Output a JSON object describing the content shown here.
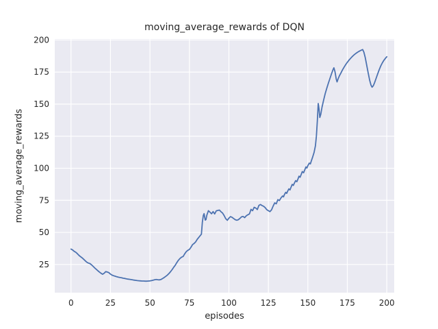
{
  "chart_data": {
    "type": "line",
    "title": "moving_average_rewards of DQN",
    "xlabel": "episodes",
    "ylabel": "moving_average_rewards",
    "x_ticks": [
      0,
      25,
      50,
      75,
      100,
      125,
      150,
      175,
      200
    ],
    "y_ticks": [
      25,
      50,
      75,
      100,
      125,
      150,
      175,
      200
    ],
    "xlim": [
      -10.3,
      204.7
    ],
    "ylim": [
      3.0,
      200.7
    ],
    "grid": true,
    "legend": "none",
    "colors": {
      "line": "#4C72B0",
      "plot_background": "#EAEAF2",
      "gridline": "#FFFFFF",
      "text": "#262626",
      "figure_background": "#FFFFFF"
    },
    "series": [
      {
        "name": "DQN moving average rewards",
        "points": [
          [
            0,
            37
          ],
          [
            1,
            36.3
          ],
          [
            2,
            35.2
          ],
          [
            3,
            34.5
          ],
          [
            4,
            33.4
          ],
          [
            5,
            32.1
          ],
          [
            6,
            31.1
          ],
          [
            7,
            30.2
          ],
          [
            8,
            29.1
          ],
          [
            9,
            27.9
          ],
          [
            10,
            26.8
          ],
          [
            11,
            26.1
          ],
          [
            12,
            25.7
          ],
          [
            13,
            24.7
          ],
          [
            14,
            23.5
          ],
          [
            15,
            22.3
          ],
          [
            16,
            21.2
          ],
          [
            17,
            20.1
          ],
          [
            18,
            19.1
          ],
          [
            19,
            18.1
          ],
          [
            20,
            17.4
          ],
          [
            21,
            18.2
          ],
          [
            22,
            19.4
          ],
          [
            23,
            19.1
          ],
          [
            24,
            18.6
          ],
          [
            25,
            17.5
          ],
          [
            26,
            16.7
          ],
          [
            27,
            16.2
          ],
          [
            28,
            15.8
          ],
          [
            29,
            15.4
          ],
          [
            30,
            15.1
          ],
          [
            31,
            14.8
          ],
          [
            32,
            14.6
          ],
          [
            33,
            14.3
          ],
          [
            34,
            14.1
          ],
          [
            35,
            13.8
          ],
          [
            36,
            13.6
          ],
          [
            37,
            13.4
          ],
          [
            38,
            13.2
          ],
          [
            39,
            13.0
          ],
          [
            40,
            12.8
          ],
          [
            41,
            12.6
          ],
          [
            42,
            12.4
          ],
          [
            43,
            12.3
          ],
          [
            44,
            12.2
          ],
          [
            45,
            12.1
          ],
          [
            46,
            12.1
          ],
          [
            47,
            12.0
          ],
          [
            48,
            12.0
          ],
          [
            49,
            12.1
          ],
          [
            50,
            12.2
          ],
          [
            51,
            12.4
          ],
          [
            52,
            12.7
          ],
          [
            53,
            13.1
          ],
          [
            54,
            13.3
          ],
          [
            55,
            13.1
          ],
          [
            56,
            13.0
          ],
          [
            57,
            13.3
          ],
          [
            58,
            14.0
          ],
          [
            59,
            14.8
          ],
          [
            60,
            15.7
          ],
          [
            61,
            16.7
          ],
          [
            62,
            17.9
          ],
          [
            63,
            19.3
          ],
          [
            64,
            20.9
          ],
          [
            65,
            22.7
          ],
          [
            66,
            24.3
          ],
          [
            67,
            26.4
          ],
          [
            68,
            28.2
          ],
          [
            69,
            29.6
          ],
          [
            70,
            30.7
          ],
          [
            71,
            31.2
          ],
          [
            72,
            33.3
          ],
          [
            73,
            35.0
          ],
          [
            74,
            36.0
          ],
          [
            75,
            36.7
          ],
          [
            76,
            38.5
          ],
          [
            77,
            40.5
          ],
          [
            78,
            41.4
          ],
          [
            79,
            42.7
          ],
          [
            80,
            44.7
          ],
          [
            81,
            46.2
          ],
          [
            82,
            47.7
          ],
          [
            82.6,
            48.6
          ],
          [
            83.2,
            58.0
          ],
          [
            83.8,
            63.2
          ],
          [
            84.3,
            64.6
          ],
          [
            85,
            59.6
          ],
          [
            85.5,
            60.0
          ],
          [
            86,
            63.4
          ],
          [
            87,
            66.9
          ],
          [
            88,
            65.8
          ],
          [
            89,
            64.5
          ],
          [
            90,
            66.2
          ],
          [
            91,
            64.4
          ],
          [
            92,
            66.8
          ],
          [
            93,
            67.1
          ],
          [
            94,
            67.4
          ],
          [
            95,
            66.1
          ],
          [
            96,
            65.1
          ],
          [
            97,
            63.1
          ],
          [
            98,
            60.7
          ],
          [
            99,
            59.4
          ],
          [
            100,
            61.1
          ],
          [
            101,
            62.3
          ],
          [
            102,
            61.7
          ],
          [
            103,
            60.8
          ],
          [
            104,
            59.9
          ],
          [
            105,
            59.5
          ],
          [
            106,
            59.9
          ],
          [
            107,
            60.9
          ],
          [
            108,
            62.1
          ],
          [
            109,
            62.4
          ],
          [
            110,
            61.5
          ],
          [
            111,
            62.9
          ],
          [
            112,
            63.7
          ],
          [
            113,
            64.4
          ],
          [
            114,
            68.0
          ],
          [
            115,
            66.9
          ],
          [
            116,
            69.6
          ],
          [
            117,
            69.0
          ],
          [
            118,
            67.8
          ],
          [
            119,
            71.0
          ],
          [
            120,
            71.7
          ],
          [
            121,
            70.9
          ],
          [
            122,
            70.4
          ],
          [
            123,
            69.3
          ],
          [
            124,
            67.7
          ],
          [
            125,
            66.9
          ],
          [
            126,
            66.2
          ],
          [
            127,
            67.5
          ],
          [
            128,
            70.5
          ],
          [
            129,
            73.0
          ],
          [
            130,
            72.3
          ],
          [
            131,
            75.5
          ],
          [
            132,
            74.8
          ],
          [
            133,
            76.9
          ],
          [
            134,
            78.4
          ],
          [
            134.6,
            77.7
          ],
          [
            135.2,
            79.6
          ],
          [
            136,
            81.2
          ],
          [
            136.6,
            80.4
          ],
          [
            137.2,
            82.1
          ],
          [
            138,
            83.9
          ],
          [
            138.7,
            83.1
          ],
          [
            139.4,
            85.4
          ],
          [
            140.1,
            87.4
          ],
          [
            140.8,
            86.6
          ],
          [
            141.5,
            88.5
          ],
          [
            142.3,
            90.3
          ],
          [
            143,
            89.5
          ],
          [
            143.7,
            91.5
          ],
          [
            144.4,
            93.8
          ],
          [
            145.1,
            93.0
          ],
          [
            145.8,
            95.1
          ],
          [
            146.5,
            97.4
          ],
          [
            147.3,
            96.5
          ],
          [
            148,
            98.6
          ],
          [
            148.8,
            101.0
          ],
          [
            149.4,
            100.2
          ],
          [
            150.1,
            102.2
          ],
          [
            150.9,
            104.0
          ],
          [
            151.6,
            103.4
          ],
          [
            152.3,
            106.0
          ],
          [
            153,
            108.5
          ],
          [
            154,
            112.5
          ],
          [
            154.8,
            117.5
          ],
          [
            155.4,
            125.0
          ],
          [
            156,
            137.0
          ],
          [
            156.6,
            150.5
          ],
          [
            157.1,
            146.0
          ],
          [
            157.6,
            139.6
          ],
          [
            158.2,
            142.0
          ],
          [
            159,
            147.8
          ],
          [
            160,
            153.2
          ],
          [
            161,
            158.2
          ],
          [
            162,
            162.4
          ],
          [
            163,
            166.3
          ],
          [
            164,
            170.0
          ],
          [
            165,
            173.6
          ],
          [
            166,
            177.0
          ],
          [
            166.5,
            178.3
          ],
          [
            167.2,
            175.2
          ],
          [
            168,
            169.5
          ],
          [
            168.5,
            167.3
          ],
          [
            169.2,
            169.8
          ],
          [
            170,
            172.0
          ],
          [
            171,
            174.4
          ],
          [
            172,
            176.8
          ],
          [
            173,
            178.9
          ],
          [
            174,
            180.9
          ],
          [
            175,
            182.6
          ],
          [
            176,
            184.2
          ],
          [
            177,
            185.6
          ],
          [
            178,
            186.9
          ],
          [
            179,
            188.1
          ],
          [
            180,
            189.1
          ],
          [
            181,
            190.0
          ],
          [
            182,
            190.8
          ],
          [
            183,
            191.5
          ],
          [
            184,
            192.1
          ],
          [
            184.7,
            192.5
          ],
          [
            185.5,
            190.5
          ],
          [
            186.3,
            186.5
          ],
          [
            187.2,
            181.0
          ],
          [
            188.2,
            174.5
          ],
          [
            189.2,
            168.5
          ],
          [
            190,
            164.8
          ],
          [
            190.7,
            163.2
          ],
          [
            191.5,
            164.3
          ],
          [
            192.3,
            166.8
          ],
          [
            193.2,
            170.0
          ],
          [
            194.2,
            173.5
          ],
          [
            195.2,
            176.8
          ],
          [
            196.2,
            179.8
          ],
          [
            197.2,
            182.2
          ],
          [
            198.2,
            184.2
          ],
          [
            199.2,
            185.8
          ],
          [
            200,
            186.9
          ]
        ]
      }
    ]
  }
}
